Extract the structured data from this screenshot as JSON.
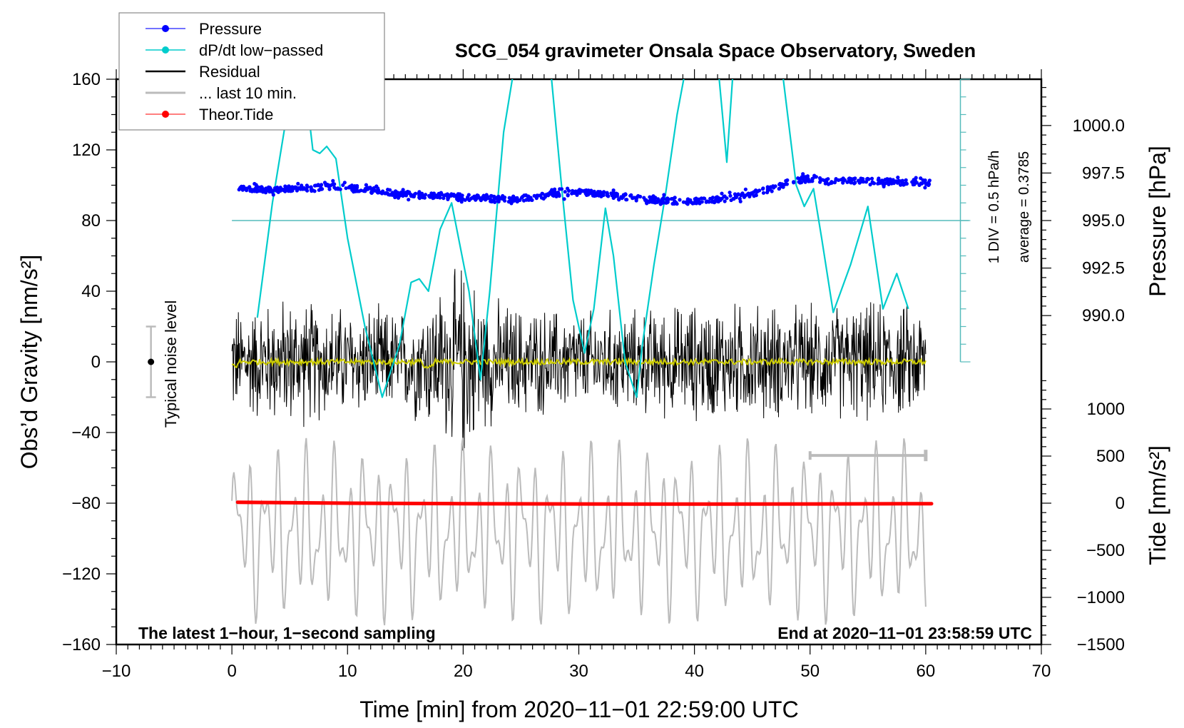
{
  "chart_data": {
    "type": "line",
    "title": "SCG_054 gravimeter Onsala Space Observatory, Sweden",
    "xlabel": "Time [min] from 2020−11−01 22:59:00 UTC",
    "ylabel": "Obs’d Gravity [nm/s²]",
    "ylabel_right_top": "Pressure [hPa]",
    "ylabel_right_bottom": "Tide [nm/s²]",
    "xlim": [
      -10,
      70
    ],
    "ylim": [
      -160,
      160
    ],
    "x_ticks": [
      "−10",
      "0",
      "10",
      "20",
      "30",
      "40",
      "50",
      "60",
      "70"
    ],
    "x_tick_values": [
      -10,
      0,
      10,
      20,
      30,
      40,
      50,
      60,
      70
    ],
    "y_ticks": [
      "−160",
      "−120",
      "−80",
      "−40",
      "0",
      "40",
      "80",
      "120",
      "160"
    ],
    "y_tick_values": [
      -160,
      -120,
      -80,
      -40,
      0,
      40,
      80,
      120,
      160
    ],
    "pressure_axis": {
      "ticks": [
        "990.0",
        "992.5",
        "995.0",
        "997.5",
        "1000.0"
      ],
      "tick_values": [
        990.0,
        992.5,
        995.0,
        997.5,
        1000.0
      ],
      "gravity_equivalent_of_995": 80,
      "gravity_units_per_hPa": 10.76
    },
    "tide_axis": {
      "ticks": [
        "−1500",
        "−1000",
        "−500",
        "0",
        "500",
        "1000"
      ],
      "tick_values": [
        -1500,
        -1000,
        -500,
        0,
        500,
        1000
      ],
      "gravity_equivalent_of_0": -80,
      "gravity_units_per_1000": 53.33
    },
    "legend": {
      "placement": "top-left",
      "entries": [
        {
          "label": "Pressure",
          "color": "#0000ff",
          "marker": "dot"
        },
        {
          "label": "dP/dt low−passed",
          "color": "#00cccc",
          "marker": "dot"
        },
        {
          "label": "Residual",
          "color": "#000000",
          "marker": "line"
        },
        {
          "label": "... last 10 min.",
          "color": "#bbbbbb",
          "marker": "line"
        },
        {
          "label": "Theor.Tide",
          "color": "#ff0000",
          "marker": "dot"
        }
      ]
    },
    "annotations": {
      "noise_label": "Typical noise level",
      "noise_level": {
        "x": -7,
        "center": 0,
        "low": -20,
        "high": 20
      },
      "bottom_left": "The latest 1−hour, 1−second sampling",
      "bottom_right": "End at 2020−11−01 23:58:59 UTC",
      "dpdt_scale": "1 DIV = 0.5 hPa/h",
      "dpdt_average": "average = 0.3785",
      "dpdt_scale_bar": {
        "x": 63,
        "zero_gravity": 0,
        "top_gravity": 160,
        "baseline_gravity": 80,
        "divisions": 16
      },
      "last10_bar": {
        "x_start": 50,
        "x_end": 60,
        "y": -53
      }
    },
    "series": [
      {
        "name": "Pressure",
        "unit": "hPa",
        "color": "#0000ff",
        "x": [
          0.5,
          3,
          6,
          9,
          12,
          15,
          18,
          21,
          24,
          27,
          30,
          33,
          36,
          39,
          42,
          45,
          48,
          49.5,
          52,
          55,
          58,
          60.5
        ],
        "values": [
          996.7,
          996.6,
          996.7,
          996.8,
          996.6,
          996.4,
          996.3,
          996.2,
          996.1,
          996.3,
          996.5,
          996.3,
          996.1,
          996.0,
          996.1,
          996.4,
          996.9,
          997.2,
          997.1,
          997.1,
          997.0,
          997.0
        ],
        "scatter_spread_hPa": 0.15
      },
      {
        "name": "dP/dt low-passed",
        "unit": "gravity-axis equivalent",
        "color": "#00cccc",
        "x": [
          2.2,
          3.5,
          5.0,
          6.2,
          7.0,
          7.6,
          8.2,
          9.0,
          10.0,
          11.5,
          13.0,
          14.5,
          15.5,
          16.2,
          17.0,
          18.0,
          19.0,
          20.5,
          21.5,
          22.3,
          23.5,
          24.5,
          25.0,
          27.5,
          28.5,
          29.5,
          30.5,
          31.3,
          32.3,
          33.0,
          34.0,
          35.0,
          35.5,
          36.5,
          37.5,
          38.5,
          39.5,
          42.0,
          42.8,
          43.5,
          47.5,
          48.8,
          49.5,
          50.3,
          51.0,
          52.0,
          53.5,
          55.0,
          56.3,
          57.5,
          58.5
        ],
        "values": [
          25,
          90,
          150,
          165,
          120,
          118,
          122,
          115,
          70,
          20,
          -20,
          10,
          45,
          47,
          40,
          75,
          90,
          40,
          -10,
          40,
          130,
          170,
          180,
          170,
          100,
          35,
          5,
          30,
          87,
          60,
          0,
          -20,
          10,
          55,
          95,
          140,
          175,
          170,
          113,
          180,
          170,
          100,
          88,
          98,
          70,
          28,
          55,
          88,
          30,
          50,
          30
        ]
      },
      {
        "name": "Residual",
        "unit": "nm/s2",
        "color": "#000000",
        "x_start": 0,
        "x_end": 60,
        "amplitude_envelope_x": [
          0,
          5,
          10,
          15,
          19,
          20,
          22,
          25,
          30,
          35,
          40,
          45,
          50,
          55,
          60
        ],
        "amplitude_envelope": [
          30,
          35,
          30,
          28,
          45,
          55,
          35,
          30,
          28,
          28,
          32,
          32,
          30,
          32,
          30
        ]
      },
      {
        "name": "Residual smoothed",
        "unit": "nm/s2",
        "color": "#cccc00",
        "x_start": 0,
        "x_end": 60,
        "values_mean": 0
      },
      {
        "name": "... last 10 min.",
        "unit": "nm/s2",
        "color": "#bbbbbb",
        "x_start": 0,
        "x_end": 60,
        "center_gravity": -96,
        "amplitude": 45
      },
      {
        "name": "Theor.Tide",
        "unit": "nm/s2",
        "color": "#ff0000",
        "x": [
          0.5,
          10,
          20,
          30,
          40,
          50,
          60.5
        ],
        "values": [
          10,
          0,
          -5,
          -8,
          -10,
          -8,
          -5
        ]
      }
    ],
    "grid": false
  }
}
